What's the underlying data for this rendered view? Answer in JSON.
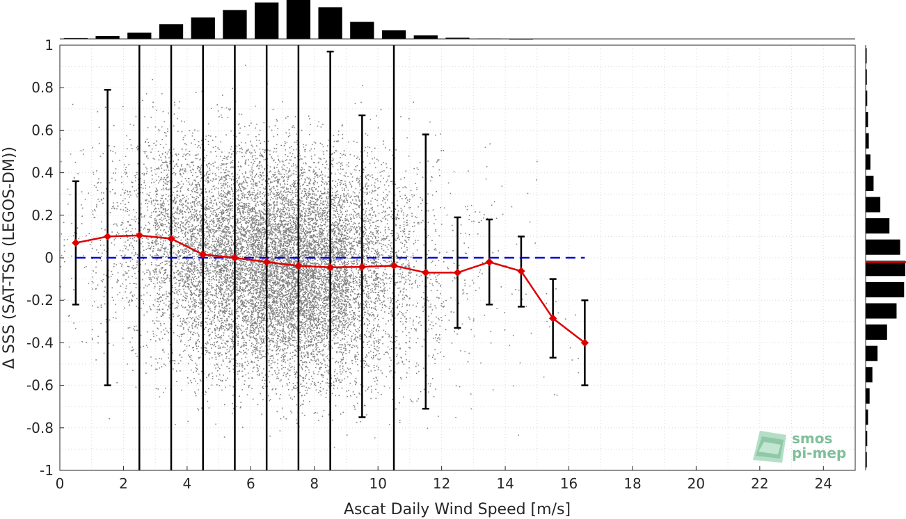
{
  "chart_data": {
    "type": "scatter",
    "xlabel": "Ascat Daily Wind Speed [m/s]",
    "ylabel": "Δ SSS (SAT-TSG (LEGOS-DM))",
    "xlim": [
      0,
      25
    ],
    "ylim": [
      -1,
      1
    ],
    "x_ticks": [
      "0",
      "2",
      "4",
      "6",
      "8",
      "10",
      "12",
      "14",
      "16",
      "18",
      "20",
      "22",
      "24"
    ],
    "y_ticks": [
      "1",
      "0.8",
      "0.6",
      "0.4",
      "0.2",
      "0",
      "-0.2",
      "-0.4",
      "-0.6",
      "-0.8",
      "-1"
    ],
    "grid": true,
    "scatter_color": "#808080",
    "series": [
      {
        "style": "line-with-diamond-markers",
        "color": "#dd0000",
        "x": [
          0.5,
          1.5,
          2.5,
          3.5,
          4.5,
          5.5,
          6.5,
          7.5,
          8.5,
          9.5,
          10.5,
          11.5,
          12.5,
          13.5,
          14.5,
          15.5,
          16.5
        ],
        "y": [
          0.07,
          0.1,
          0.105,
          0.09,
          0.015,
          0.0,
          -0.02,
          -0.038,
          -0.045,
          -0.043,
          -0.037,
          -0.07,
          -0.07,
          -0.02,
          -0.063,
          -0.285,
          -0.4
        ],
        "err_lower": [
          -0.22,
          -0.6,
          -1.0,
          -1.0,
          -1.0,
          -1.0,
          -1.0,
          -1.0,
          -1.0,
          -0.75,
          -1.0,
          -0.71,
          -0.33,
          -0.22,
          -0.23,
          -0.47,
          -0.6
        ],
        "err_upper": [
          0.36,
          0.79,
          1.0,
          1.0,
          1.0,
          1.0,
          1.0,
          1.0,
          0.97,
          0.67,
          1.0,
          0.58,
          0.19,
          0.18,
          0.1,
          -0.1,
          -0.2
        ]
      },
      {
        "style": "dashed-reference-line",
        "color": "#0000dd",
        "y": 0.0,
        "x_range": [
          0.5,
          16.5
        ]
      }
    ],
    "top_histogram": {
      "bin_centers": [
        0.5,
        1.5,
        2.5,
        3.5,
        4.5,
        5.5,
        6.5,
        7.5,
        8.5,
        9.5,
        10.5,
        11.5,
        12.5,
        13.5,
        14.5
      ],
      "relative_heights": [
        0.02,
        0.07,
        0.16,
        0.37,
        0.54,
        0.73,
        0.92,
        1.0,
        0.8,
        0.43,
        0.22,
        0.09,
        0.03,
        0.01,
        0.003
      ]
    },
    "right_histogram": {
      "bin_centers": [
        0.95,
        0.85,
        0.75,
        0.65,
        0.55,
        0.45,
        0.35,
        0.25,
        0.15,
        0.05,
        -0.05,
        -0.15,
        -0.25,
        -0.35,
        -0.45,
        -0.55,
        -0.65,
        -0.75,
        -0.85,
        -0.95
      ],
      "relative_widths": [
        0.02,
        0.03,
        0.04,
        0.06,
        0.08,
        0.12,
        0.2,
        0.37,
        0.6,
        0.87,
        1.0,
        0.97,
        0.78,
        0.54,
        0.3,
        0.17,
        0.1,
        0.06,
        0.04,
        0.03
      ],
      "marker_y": -0.02,
      "marker_color": "#dd0000"
    }
  },
  "logo": {
    "line1": "smos",
    "line2": "pi-mep"
  }
}
